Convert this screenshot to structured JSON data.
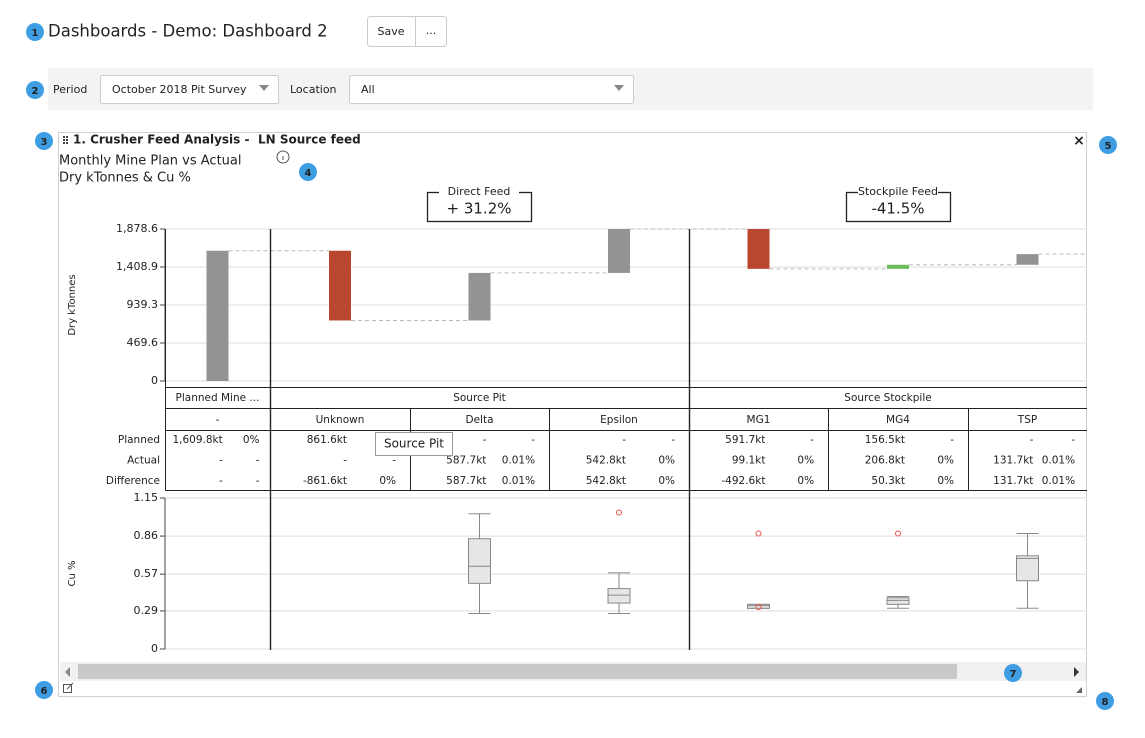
{
  "badges": [
    "1",
    "2",
    "3",
    "4",
    "5",
    "6",
    "7",
    "8"
  ],
  "header": {
    "title": "Dashboards - Demo: Dashboard 2",
    "save": "Save",
    "more": "..."
  },
  "filters": {
    "period_label": "Period",
    "period_value": "October 2018 Pit Survey",
    "location_label": "Location",
    "location_value": "All"
  },
  "widget": {
    "title": "1. Crusher Feed Analysis -",
    "source": "LN Source feed",
    "subtitle": "Monthly Mine Plan vs Actual",
    "units": "Dry kTonnes & Cu %",
    "close": "×",
    "feed_boxes": [
      {
        "label": "Direct Feed",
        "value": "+ 31.2%"
      },
      {
        "label": "Stockpile Feed",
        "value": "-41.5%"
      }
    ],
    "tooltip": "Source Pit"
  },
  "chart_data": [
    {
      "type": "waterfall",
      "y_label": "Dry kTonnes",
      "values": [
        1609.8,
        -861.6,
        587.7,
        542.8,
        -492.6,
        50.3,
        131.7
      ],
      "colors": [
        "#939393",
        "#b9472f",
        "#939393",
        "#939393",
        "#b9472f",
        "#6cbd5a",
        "#939393"
      ],
      "ylim": [
        0,
        1878.6
      ],
      "yticks": [
        0,
        469.6,
        939.3,
        {
          "value": 1408.9,
          "label": "1,408.9"
        },
        {
          "value": 1878.6,
          "label": "1,878.6"
        }
      ],
      "grid": true
    },
    {
      "type": "box",
      "y_label": "Cu %",
      "color": "#e6e6e6",
      "outlier_color": "#e8534a",
      "ylim": [
        0,
        1.15
      ],
      "yticks": [
        0,
        0.29,
        0.57,
        0.86,
        1.15
      ],
      "grid": true,
      "boxes": [
        null,
        null,
        {
          "whisker_low": 0.27,
          "q1": 0.5,
          "median": 0.63,
          "q3": 0.84,
          "whisker_high": 1.03,
          "outliers": []
        },
        {
          "whisker_low": 0.27,
          "q1": 0.35,
          "median": 0.41,
          "q3": 0.46,
          "whisker_high": 0.58,
          "outliers": [
            1.04
          ]
        },
        {
          "whisker_low": 0.31,
          "q1": 0.31,
          "median": 0.33,
          "q3": 0.34,
          "whisker_high": 0.34,
          "outliers": [
            0.88,
            0.32
          ]
        },
        {
          "whisker_low": 0.31,
          "q1": 0.34,
          "median": 0.37,
          "q3": 0.39,
          "whisker_high": 0.4,
          "outliers": [
            0.88
          ]
        },
        {
          "whisker_low": 0.31,
          "q1": 0.52,
          "median": 0.69,
          "q3": 0.71,
          "whisker_high": 0.88,
          "outliers": []
        }
      ]
    }
  ],
  "table": {
    "groups": [
      "Planned Mine ...",
      "Source Pit",
      "Source Stockpile"
    ],
    "columns": [
      "-",
      "Unknown",
      "Delta",
      "Epsilon",
      "MG1",
      "MG4",
      "TSP"
    ],
    "rows": [
      {
        "label": "Planned",
        "cells": [
          [
            "1,609.8kt",
            "0%"
          ],
          [
            "861.6kt",
            "-"
          ],
          [
            "-",
            "-"
          ],
          [
            "-",
            "-"
          ],
          [
            "591.7kt",
            "-"
          ],
          [
            "156.5kt",
            "-"
          ],
          [
            "-",
            "-"
          ]
        ]
      },
      {
        "label": "Actual",
        "cells": [
          [
            "-",
            "-"
          ],
          [
            "-",
            "-"
          ],
          [
            "587.7kt",
            "0.01%"
          ],
          [
            "542.8kt",
            "0%"
          ],
          [
            "99.1kt",
            "0%"
          ],
          [
            "206.8kt",
            "0%"
          ],
          [
            "131.7kt",
            "0.01%"
          ]
        ]
      },
      {
        "label": "Difference",
        "cells": [
          [
            "-",
            "-"
          ],
          [
            "-861.6kt",
            "0%"
          ],
          [
            "587.7kt",
            "0.01%"
          ],
          [
            "542.8kt",
            "0%"
          ],
          [
            "-492.6kt",
            "0%"
          ],
          [
            "50.3kt",
            "0%"
          ],
          [
            "131.7kt",
            "0.01%"
          ]
        ]
      }
    ]
  }
}
